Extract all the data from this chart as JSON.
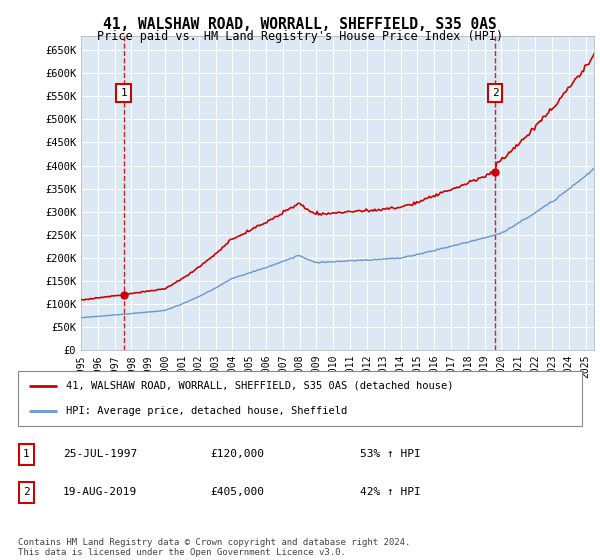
{
  "title_line1": "41, WALSHAW ROAD, WORRALL, SHEFFIELD, S35 0AS",
  "title_line2": "Price paid vs. HM Land Registry's House Price Index (HPI)",
  "background_color": "#dce9f5",
  "plot_bg": "#dce9f5",
  "red_line_label": "41, WALSHAW ROAD, WORRALL, SHEFFIELD, S35 0AS (detached house)",
  "blue_line_label": "HPI: Average price, detached house, Sheffield",
  "annotation1": {
    "label": "1",
    "date_str": "25-JUL-1997",
    "price": 120000,
    "note": "53% ↑ HPI"
  },
  "annotation2": {
    "label": "2",
    "date_str": "19-AUG-2019",
    "price": 405000,
    "note": "42% ↑ HPI"
  },
  "footer": "Contains HM Land Registry data © Crown copyright and database right 2024.\nThis data is licensed under the Open Government Licence v3.0.",
  "ylim": [
    0,
    680000
  ],
  "ytick_vals": [
    0,
    50000,
    100000,
    150000,
    200000,
    250000,
    300000,
    350000,
    400000,
    450000,
    500000,
    550000,
    600000,
    650000
  ],
  "ytick_labels": [
    "£0",
    "£50K",
    "£100K",
    "£150K",
    "£200K",
    "£250K",
    "£300K",
    "£350K",
    "£400K",
    "£450K",
    "£500K",
    "£550K",
    "£600K",
    "£650K"
  ],
  "year_start": 1995,
  "year_end": 2025,
  "red_color": "#cc0000",
  "blue_color": "#6699cc",
  "grid_color": "#ffffff",
  "purchase1_year": 1997,
  "purchase1_month": 7,
  "purchase1_price": 120000,
  "purchase2_year": 2019,
  "purchase2_month": 8,
  "purchase2_price": 405000
}
